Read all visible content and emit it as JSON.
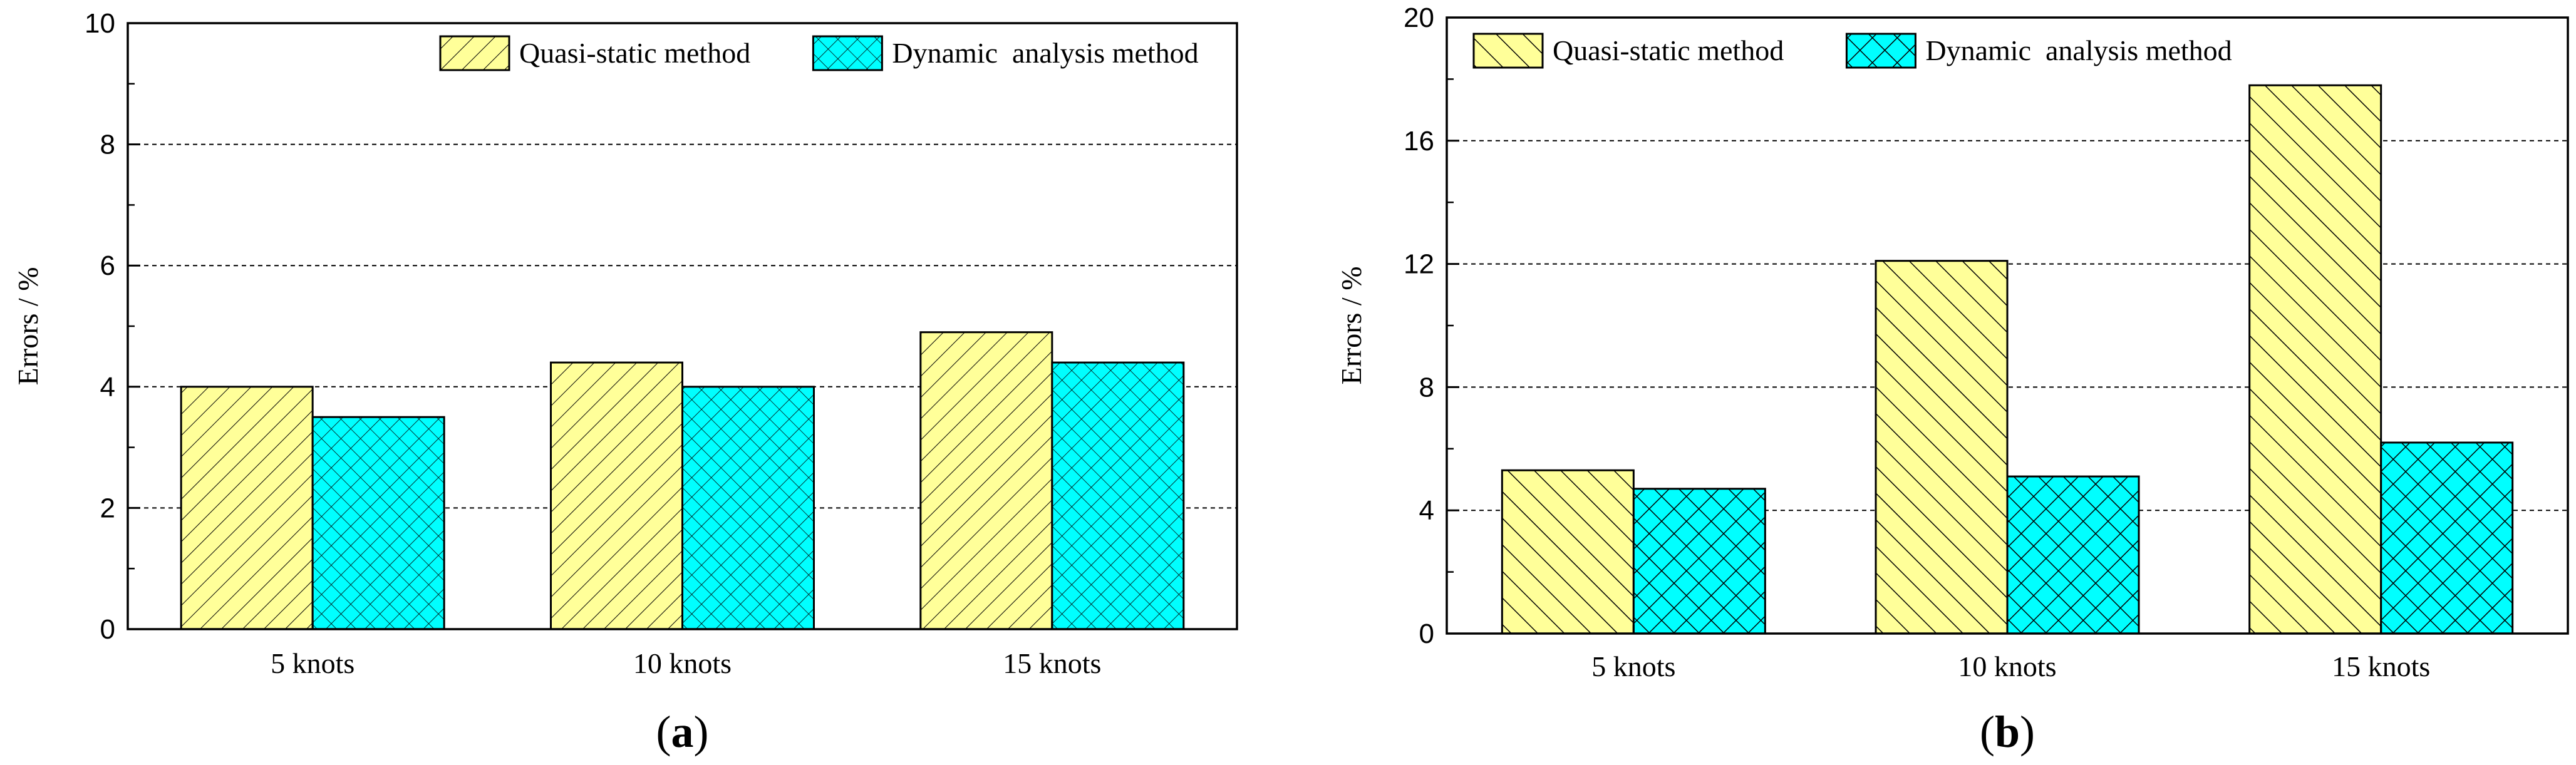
{
  "colors": {
    "quasi_fill": "#FFFF99",
    "dynamic_fill_a": "#00FFFF",
    "dynamic_fill_b": "#00FFFF",
    "axis": "#000000",
    "grid": "#000000"
  },
  "chart_data": [
    {
      "type": "bar",
      "panel": "a",
      "panel_label": {
        "open": "(",
        "letter": "a",
        "close": ")"
      },
      "title": "",
      "xlabel": "",
      "ylabel": "Errors / %",
      "ylim": [
        0,
        10
      ],
      "yticks": [
        0,
        2,
        4,
        6,
        8,
        10
      ],
      "grid": true,
      "legend_position": "top-right",
      "categories": [
        "5 knots",
        "10 knots",
        "15 knots"
      ],
      "series": [
        {
          "name": "Quasi-static method",
          "values": [
            4.0,
            4.4,
            4.9
          ]
        },
        {
          "name": "Dynamic  analysis method",
          "values": [
            3.5,
            4.0,
            4.4
          ]
        }
      ]
    },
    {
      "type": "bar",
      "panel": "b",
      "panel_label": {
        "open": "(",
        "letter": "b",
        "close": ")"
      },
      "title": "",
      "xlabel": "",
      "ylabel": "Errors / %",
      "ylim": [
        0,
        20
      ],
      "yticks": [
        0,
        4,
        8,
        12,
        16,
        20
      ],
      "grid": true,
      "legend_position": "top-left",
      "categories": [
        "5 knots",
        "10 knots",
        "15 knots"
      ],
      "series": [
        {
          "name": "Quasi-static method",
          "values": [
            5.3,
            12.1,
            17.8
          ]
        },
        {
          "name": "Dynamic  analysis method",
          "values": [
            4.7,
            5.1,
            6.2
          ]
        }
      ]
    }
  ]
}
